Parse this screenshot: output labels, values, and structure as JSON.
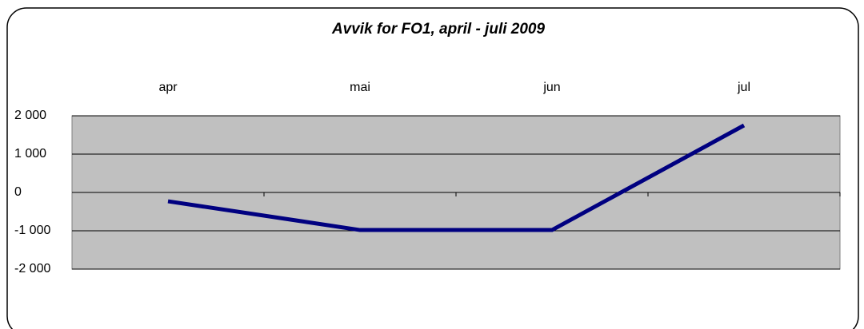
{
  "chart_data": {
    "type": "line",
    "title": "Avvik for FO1, april - juli 2009",
    "categories": [
      "apr",
      "mai",
      "jun",
      "jul"
    ],
    "series": [
      {
        "name": "FO1",
        "color": "#000080",
        "values": [
          -230,
          -980,
          -980,
          1750
        ]
      }
    ],
    "ylim": [
      -2000,
      2000
    ],
    "yticks": [
      {
        "value": -2000,
        "label": "-2 000"
      },
      {
        "value": -1000,
        "label": "-1 000"
      },
      0,
      {
        "value": 1000,
        "label": "1 000"
      },
      {
        "value": 2000,
        "label": "2 000"
      }
    ],
    "grid": true
  }
}
